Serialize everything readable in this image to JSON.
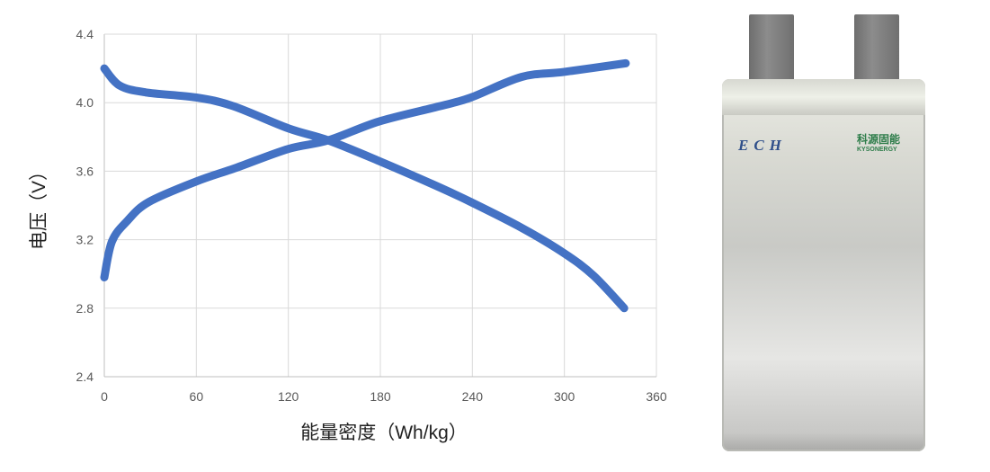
{
  "chart_data": {
    "type": "line",
    "xlabel": "能量密度（Wh/kg）",
    "ylabel": "电压（V）",
    "xlim": [
      0,
      360
    ],
    "ylim": [
      2.4,
      4.4
    ],
    "xticks": [
      "0",
      "60",
      "120",
      "180",
      "240",
      "300",
      "360"
    ],
    "yticks": [
      "2.4",
      "2.8",
      "3.2",
      "3.6",
      "4.0",
      "4.4"
    ],
    "grid": true,
    "color": "#4472C4",
    "series": [
      {
        "x": [
          0,
          10,
          27,
          60,
          84,
          120,
          146,
          179,
          215,
          239,
          272,
          300,
          319,
          339
        ],
        "y": [
          4.2,
          4.1,
          4.06,
          4.03,
          3.98,
          3.85,
          3.78,
          3.66,
          3.52,
          3.42,
          3.27,
          3.12,
          2.99,
          2.8
        ]
      },
      {
        "x": [
          0,
          5,
          15,
          29,
          60,
          86,
          120,
          146,
          179,
          219,
          239,
          272,
          300,
          340
        ],
        "y": [
          2.98,
          3.19,
          3.31,
          3.42,
          3.54,
          3.62,
          3.73,
          3.78,
          3.89,
          3.98,
          4.03,
          4.15,
          4.18,
          4.23
        ]
      }
    ]
  },
  "photo": {
    "logo_left": "ECH",
    "logo_right_cn": "科源固能",
    "logo_right_en": "KYSONERGY"
  }
}
